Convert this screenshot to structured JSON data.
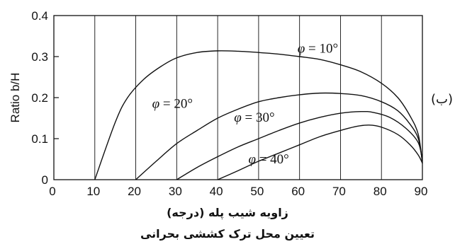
{
  "chart_data": {
    "type": "line",
    "title": "",
    "xlabel": "زاویه شیب پله (درجه)",
    "ylabel": "Ratio b/H",
    "caption": "تعیین محل ترک کششی بحرانی",
    "side_label": "(ب)",
    "xlim": [
      0,
      90
    ],
    "ylim": [
      0,
      0.4
    ],
    "x_ticks": [
      "0",
      "10",
      "20",
      "30",
      "40",
      "50",
      "60",
      "70",
      "80",
      "90"
    ],
    "y_ticks": [
      "0",
      "0.1",
      "0.2",
      "0.3",
      "0.4"
    ],
    "grid": "vertical",
    "series": [
      {
        "name": "φ = 10°",
        "label_prefix": "φ",
        "label_suffix": " = 10°",
        "points": [
          [
            10,
            0
          ],
          [
            15,
            0.14
          ],
          [
            18,
            0.2
          ],
          [
            22,
            0.245
          ],
          [
            26,
            0.275
          ],
          [
            30,
            0.297
          ],
          [
            35,
            0.31
          ],
          [
            40,
            0.314
          ],
          [
            45,
            0.313
          ],
          [
            50,
            0.31
          ],
          [
            55,
            0.306
          ],
          [
            60,
            0.3
          ],
          [
            65,
            0.293
          ],
          [
            70,
            0.28
          ],
          [
            75,
            0.263
          ],
          [
            80,
            0.235
          ],
          [
            84,
            0.2
          ],
          [
            87,
            0.155
          ],
          [
            89,
            0.11
          ],
          [
            90,
            0.04
          ]
        ]
      },
      {
        "name": "φ = 20°",
        "label_prefix": "φ",
        "label_suffix": " = 20°",
        "points": [
          [
            20,
            0
          ],
          [
            25,
            0.045
          ],
          [
            30,
            0.088
          ],
          [
            35,
            0.12
          ],
          [
            40,
            0.15
          ],
          [
            45,
            0.172
          ],
          [
            50,
            0.19
          ],
          [
            55,
            0.2
          ],
          [
            60,
            0.207
          ],
          [
            65,
            0.211
          ],
          [
            70,
            0.21
          ],
          [
            75,
            0.205
          ],
          [
            80,
            0.19
          ],
          [
            84,
            0.168
          ],
          [
            87,
            0.135
          ],
          [
            89,
            0.1
          ],
          [
            90,
            0.045
          ]
        ]
      },
      {
        "name": "φ = 30°",
        "label_prefix": "φ",
        "label_suffix": " = 30°",
        "points": [
          [
            30,
            0
          ],
          [
            35,
            0.03
          ],
          [
            40,
            0.056
          ],
          [
            45,
            0.08
          ],
          [
            50,
            0.1
          ],
          [
            55,
            0.12
          ],
          [
            60,
            0.138
          ],
          [
            65,
            0.152
          ],
          [
            70,
            0.162
          ],
          [
            75,
            0.166
          ],
          [
            78,
            0.164
          ],
          [
            82,
            0.152
          ],
          [
            86,
            0.125
          ],
          [
            89,
            0.09
          ],
          [
            90,
            0.045
          ]
        ]
      },
      {
        "name": "φ = 40°",
        "label_prefix": "φ",
        "label_suffix": " = 40°",
        "points": [
          [
            40,
            0
          ],
          [
            45,
            0.022
          ],
          [
            50,
            0.045
          ],
          [
            55,
            0.065
          ],
          [
            60,
            0.085
          ],
          [
            65,
            0.105
          ],
          [
            70,
            0.12
          ],
          [
            74,
            0.13
          ],
          [
            77,
            0.133
          ],
          [
            80,
            0.128
          ],
          [
            84,
            0.11
          ],
          [
            87,
            0.085
          ],
          [
            89,
            0.06
          ],
          [
            90,
            0.04
          ]
        ]
      }
    ]
  }
}
